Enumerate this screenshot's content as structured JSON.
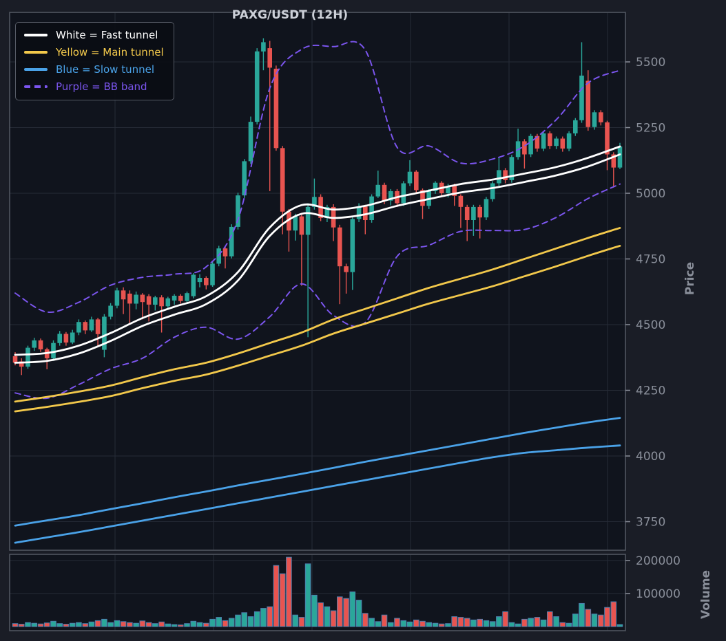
{
  "title": "PAXG/USDT (12H)",
  "legend": {
    "items": [
      {
        "label": "White = Fast tunnel",
        "color": "#ffffff",
        "dashed": false
      },
      {
        "label": "Yellow = Main tunnel",
        "color": "#f2c84b",
        "dashed": false
      },
      {
        "label": "Blue = Slow tunnel",
        "color": "#4aa2e8",
        "dashed": false
      },
      {
        "label": "Purple = BB band",
        "color": "#7b55ee",
        "dashed": true
      }
    ]
  },
  "axes": {
    "price_label": "Price",
    "volume_label": "Volume",
    "price_ticks": [
      {
        "value": 5500,
        "label": "5500"
      },
      {
        "value": 5250,
        "label": "5250"
      },
      {
        "value": 5000,
        "label": "5000"
      },
      {
        "value": 4750,
        "label": "4750"
      },
      {
        "value": 4500,
        "label": "4500"
      },
      {
        "value": 4250,
        "label": "4250"
      },
      {
        "value": 4000,
        "label": "4000"
      },
      {
        "value": 3750,
        "label": "3750"
      }
    ],
    "volume_ticks": [
      {
        "value": 200000,
        "label": "200000"
      },
      {
        "value": 100000,
        "label": "100000"
      }
    ]
  },
  "colors": {
    "background": "#1a1d26",
    "panel_background": "#10141d",
    "grid": "#262b36",
    "spine": "#50555f",
    "tick_text": "#8a8f9a",
    "title_text": "#ccd0d8",
    "up": "#2aa79a",
    "down": "#e85450",
    "volume_edge": "#4e7fae",
    "white_line": "#ffffff",
    "yellow_line": "#f2c84b",
    "blue_line": "#4aa2e8",
    "purple_line": "#7b55ee"
  },
  "chart_data": {
    "type": "candlestick+volume",
    "symbol": "PAXG/USDT",
    "timeframe": "12H",
    "title": "PAXG/USDT (12H)",
    "ylabel": "Price",
    "ylabel_volume": "Volume",
    "price_axis_range": [
      3640,
      5690
    ],
    "volume_axis_range": [
      0,
      220000
    ],
    "grid": true,
    "legend_position": "upper-left",
    "candles_ohlc": [
      [
        4380,
        4395,
        4345,
        4355
      ],
      [
        4360,
        4372,
        4308,
        4340
      ],
      [
        4340,
        4420,
        4332,
        4412
      ],
      [
        4412,
        4450,
        4400,
        4440
      ],
      [
        4440,
        4447,
        4396,
        4406
      ],
      [
        4406,
        4412,
        4330,
        4372
      ],
      [
        4372,
        4440,
        4362,
        4430
      ],
      [
        4430,
        4476,
        4420,
        4465
      ],
      [
        4465,
        4472,
        4420,
        4432
      ],
      [
        4432,
        4480,
        4426,
        4470
      ],
      [
        4470,
        4520,
        4460,
        4510
      ],
      [
        4510,
        4516,
        4464,
        4478
      ],
      [
        4478,
        4530,
        4472,
        4520
      ],
      [
        4520,
        4526,
        4414,
        4464
      ],
      [
        4404,
        4540,
        4376,
        4530
      ],
      [
        4530,
        4582,
        4520,
        4572
      ],
      [
        4572,
        4640,
        4562,
        4630
      ],
      [
        4630,
        4642,
        4540,
        4596
      ],
      [
        4618,
        4630,
        4502,
        4580
      ],
      [
        4580,
        4626,
        4558,
        4614
      ],
      [
        4614,
        4620,
        4520,
        4586
      ],
      [
        4608,
        4616,
        4512,
        4576
      ],
      [
        4576,
        4610,
        4554,
        4604
      ],
      [
        4604,
        4612,
        4470,
        4570
      ],
      [
        4570,
        4606,
        4556,
        4600
      ],
      [
        4592,
        4616,
        4576,
        4610
      ],
      [
        4610,
        4616,
        4580,
        4590
      ],
      [
        4590,
        4626,
        4582,
        4620
      ],
      [
        4608,
        4696,
        4600,
        4690
      ],
      [
        4662,
        4692,
        4642,
        4678
      ],
      [
        4678,
        4684,
        4634,
        4650
      ],
      [
        4650,
        4742,
        4644,
        4732
      ],
      [
        4732,
        4800,
        4722,
        4790
      ],
      [
        4790,
        4796,
        4714,
        4760
      ],
      [
        4760,
        4882,
        4752,
        4872
      ],
      [
        4872,
        5002,
        4862,
        4992
      ],
      [
        4992,
        5130,
        4982,
        5122
      ],
      [
        5122,
        5292,
        5112,
        5272
      ],
      [
        5272,
        5552,
        5262,
        5540
      ],
      [
        5540,
        5590,
        5468,
        5575
      ],
      [
        5552,
        5580,
        5008,
        5478
      ],
      [
        5474,
        5486,
        5162,
        5172
      ],
      [
        5172,
        5180,
        4844,
        4930
      ],
      [
        4930,
        4940,
        4778,
        4858
      ],
      [
        4858,
        4922,
        4820,
        4912
      ],
      [
        4912,
        4918,
        4648,
        4842
      ],
      [
        4842,
        4962,
        4452,
        4948
      ],
      [
        4948,
        5056,
        4938,
        4986
      ],
      [
        4986,
        4996,
        4894,
        4906
      ],
      [
        4906,
        4956,
        4890,
        4948
      ],
      [
        4948,
        4958,
        4818,
        4870
      ],
      [
        4870,
        4880,
        4578,
        4722
      ],
      [
        4722,
        4732,
        4618,
        4700
      ],
      [
        4700,
        4912,
        4632,
        4902
      ],
      [
        4902,
        4962,
        4890,
        4950
      ],
      [
        4950,
        4956,
        4844,
        4898
      ],
      [
        4898,
        4996,
        4888,
        4988
      ],
      [
        4988,
        5086,
        4982,
        5032
      ],
      [
        5032,
        5040,
        4958,
        4972
      ],
      [
        4972,
        5016,
        4954,
        5008
      ],
      [
        5008,
        5016,
        4948,
        4962
      ],
      [
        4962,
        5046,
        4952,
        5038
      ],
      [
        5038,
        5126,
        5028,
        5082
      ],
      [
        5082,
        5088,
        4998,
        5012
      ],
      [
        5012,
        5018,
        4902,
        4952
      ],
      [
        4952,
        5016,
        4940,
        5008
      ],
      [
        5008,
        5046,
        4998,
        5040
      ],
      [
        5040,
        5046,
        4988,
        5000
      ],
      [
        5000,
        5036,
        4984,
        5028
      ],
      [
        5028,
        5036,
        4952,
        4990
      ],
      [
        4990,
        4996,
        4868,
        4948
      ],
      [
        4948,
        4956,
        4818,
        4898
      ],
      [
        4898,
        4956,
        4838,
        4948
      ],
      [
        4948,
        4956,
        4828,
        4908
      ],
      [
        4908,
        4986,
        4898,
        4978
      ],
      [
        4978,
        5046,
        4968,
        5038
      ],
      [
        5038,
        5136,
        5028,
        5088
      ],
      [
        5088,
        5096,
        5038,
        5050
      ],
      [
        5050,
        5146,
        5040,
        5138
      ],
      [
        5138,
        5246,
        5128,
        5198
      ],
      [
        5198,
        5206,
        5094,
        5148
      ],
      [
        5148,
        5226,
        5138,
        5218
      ],
      [
        5218,
        5226,
        5158,
        5170
      ],
      [
        5170,
        5236,
        5160,
        5228
      ],
      [
        5228,
        5236,
        5168,
        5180
      ],
      [
        5180,
        5216,
        5168,
        5208
      ],
      [
        5208,
        5216,
        5158,
        5170
      ],
      [
        5170,
        5236,
        5160,
        5228
      ],
      [
        5228,
        5286,
        5218,
        5278
      ],
      [
        5278,
        5575,
        5268,
        5448
      ],
      [
        5428,
        5468,
        5238,
        5252
      ],
      [
        5252,
        5316,
        5242,
        5308
      ],
      [
        5308,
        5316,
        5258,
        5270
      ],
      [
        5270,
        5276,
        5088,
        5148
      ],
      [
        5148,
        5156,
        5022,
        5098
      ],
      [
        5098,
        5192,
        5092,
        5178
      ]
    ],
    "volumes": [
      9000,
      7000,
      12000,
      10000,
      8000,
      11000,
      16000,
      9000,
      7000,
      10000,
      12000,
      9000,
      14000,
      18000,
      22000,
      12000,
      18000,
      15000,
      12000,
      10000,
      17000,
      12000,
      9000,
      14000,
      8000,
      6000,
      5000,
      9000,
      16000,
      12000,
      10000,
      22000,
      28000,
      18000,
      25000,
      35000,
      42000,
      30000,
      45000,
      55000,
      60000,
      185000,
      160000,
      210000,
      35000,
      28000,
      190000,
      95000,
      72000,
      60000,
      48000,
      90000,
      85000,
      105000,
      80000,
      40000,
      25000,
      15000,
      35000,
      12000,
      25000,
      18000,
      14000,
      20000,
      16000,
      12000,
      10000,
      8000,
      9000,
      30000,
      28000,
      25000,
      20000,
      22000,
      18000,
      15000,
      30000,
      45000,
      12000,
      8000,
      22000,
      25000,
      28000,
      20000,
      45000,
      30000,
      12000,
      10000,
      38000,
      70000,
      52000,
      38000,
      35000,
      58000,
      75000,
      6000
    ],
    "indicators": {
      "sample_step": 5,
      "fast_tunnel_upper": {
        "name": "Fast tunnel upper",
        "color_key": "white_line",
        "dashed": false,
        "values": [
          4385,
          4392,
          4420,
          4468,
          4525,
          4568,
          4608,
          4700,
          4870,
          4955,
          4938,
          4952,
          4985,
          5010,
          5035,
          5052,
          5075,
          5100,
          5135,
          5178
        ]
      },
      "fast_tunnel_lower": {
        "name": "Fast tunnel lower",
        "color_key": "white_line",
        "dashed": false,
        "values": [
          4355,
          4362,
          4390,
          4438,
          4495,
          4538,
          4578,
          4668,
          4838,
          4922,
          4906,
          4920,
          4952,
          4978,
          5003,
          5020,
          5043,
          5068,
          5102,
          5148
        ]
      },
      "main_tunnel_upper": {
        "name": "Main tunnel upper",
        "color_key": "yellow_line",
        "dashed": false,
        "values": [
          4207,
          4225,
          4245,
          4268,
          4300,
          4330,
          4355,
          4390,
          4430,
          4470,
          4520,
          4560,
          4600,
          4640,
          4675,
          4710,
          4750,
          4790,
          4830,
          4868
        ]
      },
      "main_tunnel_lower": {
        "name": "Main tunnel lower",
        "color_key": "yellow_line",
        "dashed": false,
        "values": [
          4170,
          4187,
          4206,
          4228,
          4258,
          4286,
          4310,
          4344,
          4382,
          4420,
          4466,
          4504,
          4542,
          4580,
          4613,
          4646,
          4684,
          4722,
          4762,
          4800
        ]
      },
      "slow_tunnel_upper": {
        "name": "Slow tunnel upper",
        "color_key": "blue_line",
        "dashed": false,
        "values": [
          3735,
          3755,
          3775,
          3798,
          3820,
          3843,
          3865,
          3888,
          3910,
          3932,
          3955,
          3978,
          4000,
          4022,
          4044,
          4066,
          4088,
          4108,
          4128,
          4145
        ]
      },
      "slow_tunnel_lower": {
        "name": "Slow tunnel lower",
        "color_key": "blue_line",
        "dashed": false,
        "values": [
          3670,
          3690,
          3710,
          3732,
          3754,
          3776,
          3798,
          3820,
          3842,
          3864,
          3886,
          3908,
          3930,
          3952,
          3974,
          3995,
          4012,
          4022,
          4032,
          4040
        ]
      },
      "bb_upper": {
        "name": "BB band upper",
        "color_key": "purple_line",
        "dashed": true,
        "values": [
          4620,
          4548,
          4585,
          4650,
          4680,
          4692,
          4720,
          4900,
          5400,
          5548,
          5558,
          5545,
          5175,
          5180,
          5115,
          5130,
          5180,
          5280,
          5420,
          5468
        ]
      },
      "bb_lower": {
        "name": "BB band lower",
        "color_key": "purple_line",
        "dashed": true,
        "values": [
          4240,
          4220,
          4272,
          4332,
          4372,
          4452,
          4490,
          4445,
          4530,
          4655,
          4535,
          4508,
          4760,
          4802,
          4855,
          4858,
          4862,
          4908,
          4980,
          5035
        ]
      }
    }
  }
}
